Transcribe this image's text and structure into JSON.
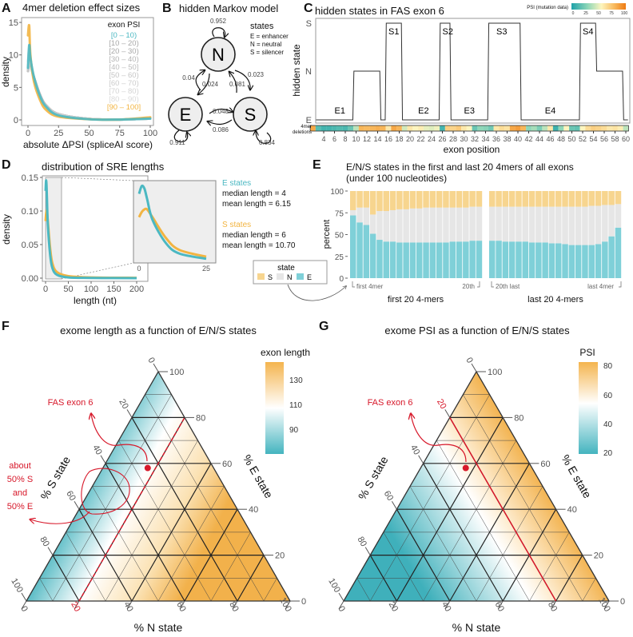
{
  "colors": {
    "teal": "#4bb8c2",
    "orange": "#f2b441",
    "grey": "#a8a8a8",
    "state_S": "#f7d58f",
    "state_N": "#e6e6e6",
    "state_E": "#7fd0d8",
    "annotation": "#d7182a"
  },
  "panels": {
    "A": {
      "letter": "A",
      "title": "4mer deletion effect sizes",
      "ylabel": "density",
      "xlabel": "absolute ΔPSI (spliceAI score)",
      "legend_title": "exon PSI"
    },
    "B": {
      "letter": "B",
      "title": "hidden Markov model",
      "states_title": "states",
      "state_defs": [
        "E = enhancer",
        "N = neutral",
        "S = silencer"
      ],
      "nodes": [
        "N",
        "E",
        "S"
      ],
      "transitions": {
        "N_N": "0.952",
        "N_E": "0.024",
        "E_N": "0.04",
        "N_S": "0.023",
        "S_N": "0.081",
        "E_S": "0.048",
        "S_E": "0.086",
        "E_E": "0.911",
        "S_S": "0.834"
      }
    },
    "C": {
      "letter": "C",
      "title": "hidden states in FAS exon 6",
      "ylabel": "hidden state",
      "xlabel": "exon position",
      "heatmap_label": [
        "4mer",
        "deletions"
      ],
      "colorbar_title": "PSI (mutation data)",
      "colorbar_ticks": [
        "0",
        "25",
        "50",
        "75",
        "100"
      ],
      "y_levels": [
        "S",
        "N",
        "E"
      ]
    },
    "D": {
      "letter": "D",
      "title": "distribution of SRE lengths",
      "ylabel": "density",
      "xlabel": "length (nt)",
      "stats": {
        "E_title": "E states",
        "E_median": "median length = 4",
        "E_mean": "mean length = 6.15",
        "S_title": "S states",
        "S_median": "median length = 6",
        "S_mean": "mean length = 10.70"
      },
      "legend": {
        "title": "state",
        "items": [
          "S",
          "N",
          "E"
        ]
      }
    },
    "E": {
      "letter": "E",
      "title_line1": "E/N/S states in the first and last 20 4mers of all exons",
      "title_line2": "(under 100 nucleotides)",
      "ylabel": "percent",
      "first_label": "first 4mer",
      "twentieth_label": "20th",
      "twentieth_last_label": "20th last",
      "last_label": "last 4mer",
      "group1": "first 20 4-mers",
      "group2": "last 20 4-mers"
    },
    "F": {
      "letter": "F",
      "title": "exome length as a function of E/N/S states",
      "colorbar_title": "exon length",
      "colorbar_ticks": [
        "130",
        "110",
        "90"
      ],
      "annotation_point": "FAS exon 6",
      "annotation_region": [
        "about",
        "50% S",
        "and",
        "50% E"
      ],
      "highlight_line_label": "20"
    },
    "G": {
      "letter": "G",
      "title": "exome PSI as a function of E/N/S states",
      "colorbar_title": "PSI",
      "colorbar_ticks": [
        "80",
        "60",
        "40",
        "20"
      ],
      "annotation_point": "FAS exon 6",
      "highlight_line_label": "20"
    },
    "ternary_axes": {
      "n": "% N state",
      "s": "% S state",
      "e": "% E state",
      "ticks": [
        "0",
        "20",
        "40",
        "60",
        "80",
        "100"
      ]
    }
  },
  "chart_data": [
    {
      "panel": "A",
      "type": "line",
      "title": "4mer deletion effect sizes",
      "xlabel": "absolute ΔPSI (spliceAI score)",
      "ylabel": "density",
      "xlim": [
        0,
        100
      ],
      "ylim": [
        0,
        15
      ],
      "xticks": [
        "0",
        "25",
        "50",
        "75",
        "100"
      ],
      "yticks": [
        "0",
        "5",
        "10",
        "15"
      ],
      "legend_placement": "top-right",
      "x": [
        0,
        1,
        2,
        5,
        10,
        15,
        25,
        50,
        75,
        100
      ],
      "series": [
        {
          "name": "[0 – 10)",
          "color": "#4bb8c2",
          "values": [
            8,
            11.5,
            9.5,
            6.5,
            3.6,
            2.0,
            0.7,
            0.1,
            0.05,
            0.2
          ]
        },
        {
          "name": "[10 – 20)",
          "color": "#a8a8a8",
          "values": [
            7.5,
            9,
            8.5,
            6.5,
            3.8,
            2.2,
            0.9,
            0.15,
            0.05,
            0.2
          ]
        },
        {
          "name": "[20 – 30)",
          "color": "#a8a8a8",
          "values": [
            7.5,
            9,
            8.5,
            6.5,
            3.8,
            2.2,
            0.9,
            0.15,
            0.05,
            0.2
          ]
        },
        {
          "name": "[30 – 40)",
          "color": "#b4b4b4",
          "values": [
            7.5,
            9,
            8.5,
            6.5,
            3.8,
            2.2,
            0.9,
            0.15,
            0.05,
            0.2
          ]
        },
        {
          "name": "[40 – 50]",
          "color": "#bdbdbd",
          "values": [
            7.5,
            9,
            8.5,
            6.4,
            3.7,
            2.2,
            0.9,
            0.15,
            0.05,
            0.2
          ]
        },
        {
          "name": "[50 – 60)",
          "color": "#c5c5c5",
          "values": [
            7.5,
            9,
            8.5,
            6.4,
            3.7,
            2.1,
            0.9,
            0.15,
            0.05,
            0.2
          ]
        },
        {
          "name": "[60 – 70)",
          "color": "#cccccc",
          "values": [
            7.8,
            9.5,
            8.8,
            6.3,
            3.6,
            2.1,
            0.8,
            0.15,
            0.05,
            0.2
          ]
        },
        {
          "name": "[70 – 80)",
          "color": "#d3d3d3",
          "values": [
            8,
            10,
            9,
            6.2,
            3.5,
            2.0,
            0.8,
            0.12,
            0.05,
            0.2
          ]
        },
        {
          "name": "[80 – 90)",
          "color": "#dadada",
          "values": [
            9,
            11,
            9.5,
            6.1,
            3.3,
            1.8,
            0.7,
            0.1,
            0.05,
            0.3
          ]
        },
        {
          "name": "[90 – 100]",
          "color": "#f2b441",
          "values": [
            13,
            14.5,
            10,
            5.8,
            3.0,
            1.5,
            0.5,
            0.1,
            0.05,
            0.4
          ]
        }
      ]
    },
    {
      "panel": "C",
      "type": "line",
      "title": "hidden states in FAS exon 6",
      "xlabel": "exon position",
      "ylabel": "hidden state",
      "xticks": [
        4,
        6,
        8,
        10,
        12,
        14,
        16,
        18,
        20,
        22,
        24,
        26,
        28,
        30,
        32,
        34,
        36,
        38,
        40,
        42,
        44,
        46,
        48,
        50,
        52,
        54,
        56,
        58,
        60
      ],
      "states": [
        "E",
        "E",
        "E",
        "E",
        "E",
        "E",
        "E",
        "N",
        "N",
        "N",
        "N",
        "N",
        "E",
        "S",
        "S",
        "S",
        "E",
        "E",
        "E",
        "E",
        "E",
        "E",
        "E",
        "S",
        "S",
        "E",
        "E",
        "E",
        "E",
        "E",
        "E",
        "E",
        "S",
        "S",
        "S",
        "S",
        "S",
        "S",
        "E",
        "E",
        "E",
        "E",
        "E",
        "E",
        "E",
        "E",
        "E",
        "E",
        "E",
        "S",
        "S",
        "S",
        "N",
        "N",
        "N",
        "N",
        "N",
        "E"
      ],
      "state_positions_start": 3,
      "segment_labels": [
        {
          "label": "E1",
          "position": 7
        },
        {
          "label": "S1",
          "position": 17
        },
        {
          "label": "E2",
          "position": 22.5
        },
        {
          "label": "S2",
          "position": 27
        },
        {
          "label": "E3",
          "position": 31
        },
        {
          "label": "S3",
          "position": 37
        },
        {
          "label": "E4",
          "position": 46
        },
        {
          "label": "S4",
          "position": 53
        }
      ],
      "heatmap_psi": [
        85,
        15,
        10,
        10,
        12,
        14,
        12,
        20,
        40,
        80,
        78,
        80,
        82,
        80,
        60,
        85,
        80,
        45,
        60,
        55,
        58,
        50,
        48,
        52,
        10,
        70,
        68,
        72,
        60,
        55,
        20,
        30,
        28,
        22,
        60,
        65,
        62,
        85,
        88,
        80,
        30,
        35,
        25,
        40,
        60,
        8,
        30,
        55,
        20,
        18,
        55,
        65,
        70,
        68,
        65,
        60,
        62,
        58,
        40
      ],
      "heatmap_positions_start": 2,
      "colorbar_range": [
        0,
        100
      ]
    },
    {
      "panel": "D",
      "type": "line",
      "title": "distribution of SRE lengths",
      "xlabel": "length (nt)",
      "ylabel": "density",
      "xlim": [
        0,
        215
      ],
      "ylim": [
        0,
        0.15
      ],
      "xticks": [
        "0",
        "50",
        "100",
        "150",
        "200"
      ],
      "yticks": [
        "0.00",
        "0.05",
        "0.10",
        "0.15"
      ],
      "inset_xticks": [
        "0",
        "25"
      ],
      "x": [
        0,
        1,
        2,
        3,
        5,
        10,
        15,
        25,
        50,
        100,
        200
      ],
      "series": [
        {
          "name": "E states",
          "color": "#4bb8c2",
          "values": [
            0.13,
            0.145,
            0.14,
            0.12,
            0.08,
            0.035,
            0.015,
            0.005,
            0.001,
            0.0003,
            0
          ]
        },
        {
          "name": "S states",
          "color": "#f2b441",
          "values": [
            0.085,
            0.095,
            0.1,
            0.1,
            0.085,
            0.045,
            0.022,
            0.009,
            0.003,
            0.001,
            0.0005
          ]
        }
      ]
    },
    {
      "panel": "E",
      "type": "bar",
      "stacked": true,
      "ylabel": "percent",
      "ylim": [
        0,
        100
      ],
      "yticks": [
        "0",
        "25",
        "50",
        "75",
        "100"
      ],
      "groups": [
        {
          "name": "first 20 4-mers",
          "E": [
            72,
            64,
            61,
            51,
            44,
            42,
            42,
            41,
            41,
            41,
            41,
            41,
            41,
            41,
            41,
            42,
            42,
            42,
            43,
            43
          ],
          "N": [
            6,
            17,
            20,
            22,
            33,
            35,
            36,
            38,
            38,
            39,
            39,
            40,
            40,
            40,
            40,
            39,
            39,
            39,
            39,
            39
          ],
          "S": [
            22,
            19,
            19,
            27,
            23,
            23,
            22,
            21,
            21,
            20,
            20,
            19,
            19,
            19,
            19,
            19,
            19,
            19,
            18,
            18
          ]
        },
        {
          "name": "last 20 4-mers",
          "E": [
            43,
            43,
            42,
            42,
            42,
            42,
            41,
            41,
            41,
            40,
            40,
            39,
            38,
            38,
            38,
            38,
            39,
            42,
            48,
            58
          ],
          "N": [
            39,
            39,
            40,
            40,
            40,
            40,
            41,
            41,
            41,
            42,
            42,
            43,
            44,
            44,
            44,
            45,
            44,
            42,
            36,
            27
          ],
          "S": [
            18,
            18,
            18,
            18,
            18,
            18,
            18,
            18,
            18,
            18,
            18,
            18,
            18,
            18,
            18,
            17,
            17,
            16,
            16,
            15
          ]
        }
      ]
    },
    {
      "panel": "F",
      "type": "heatmap",
      "subtype": "ternary",
      "title": "exome length as a function of E/N/S states",
      "colorbar_title": "exon length",
      "colorbar_range": [
        75,
        140
      ],
      "colorbar_ticks": [
        90,
        110,
        130
      ],
      "point": {
        "label": "FAS exon 6",
        "E": 58,
        "N": 17,
        "S": 25
      },
      "highlight": {
        "axis": "N",
        "value": 20
      }
    },
    {
      "panel": "G",
      "type": "heatmap",
      "subtype": "ternary",
      "title": "exome PSI as a function of E/N/S states",
      "colorbar_title": "PSI",
      "colorbar_range": [
        18,
        82
      ],
      "colorbar_ticks": [
        20,
        40,
        60,
        80
      ],
      "point": {
        "label": "FAS exon 6",
        "E": 58,
        "N": 17,
        "S": 25
      },
      "highlight": {
        "axis": "S",
        "value": 20
      }
    }
  ]
}
